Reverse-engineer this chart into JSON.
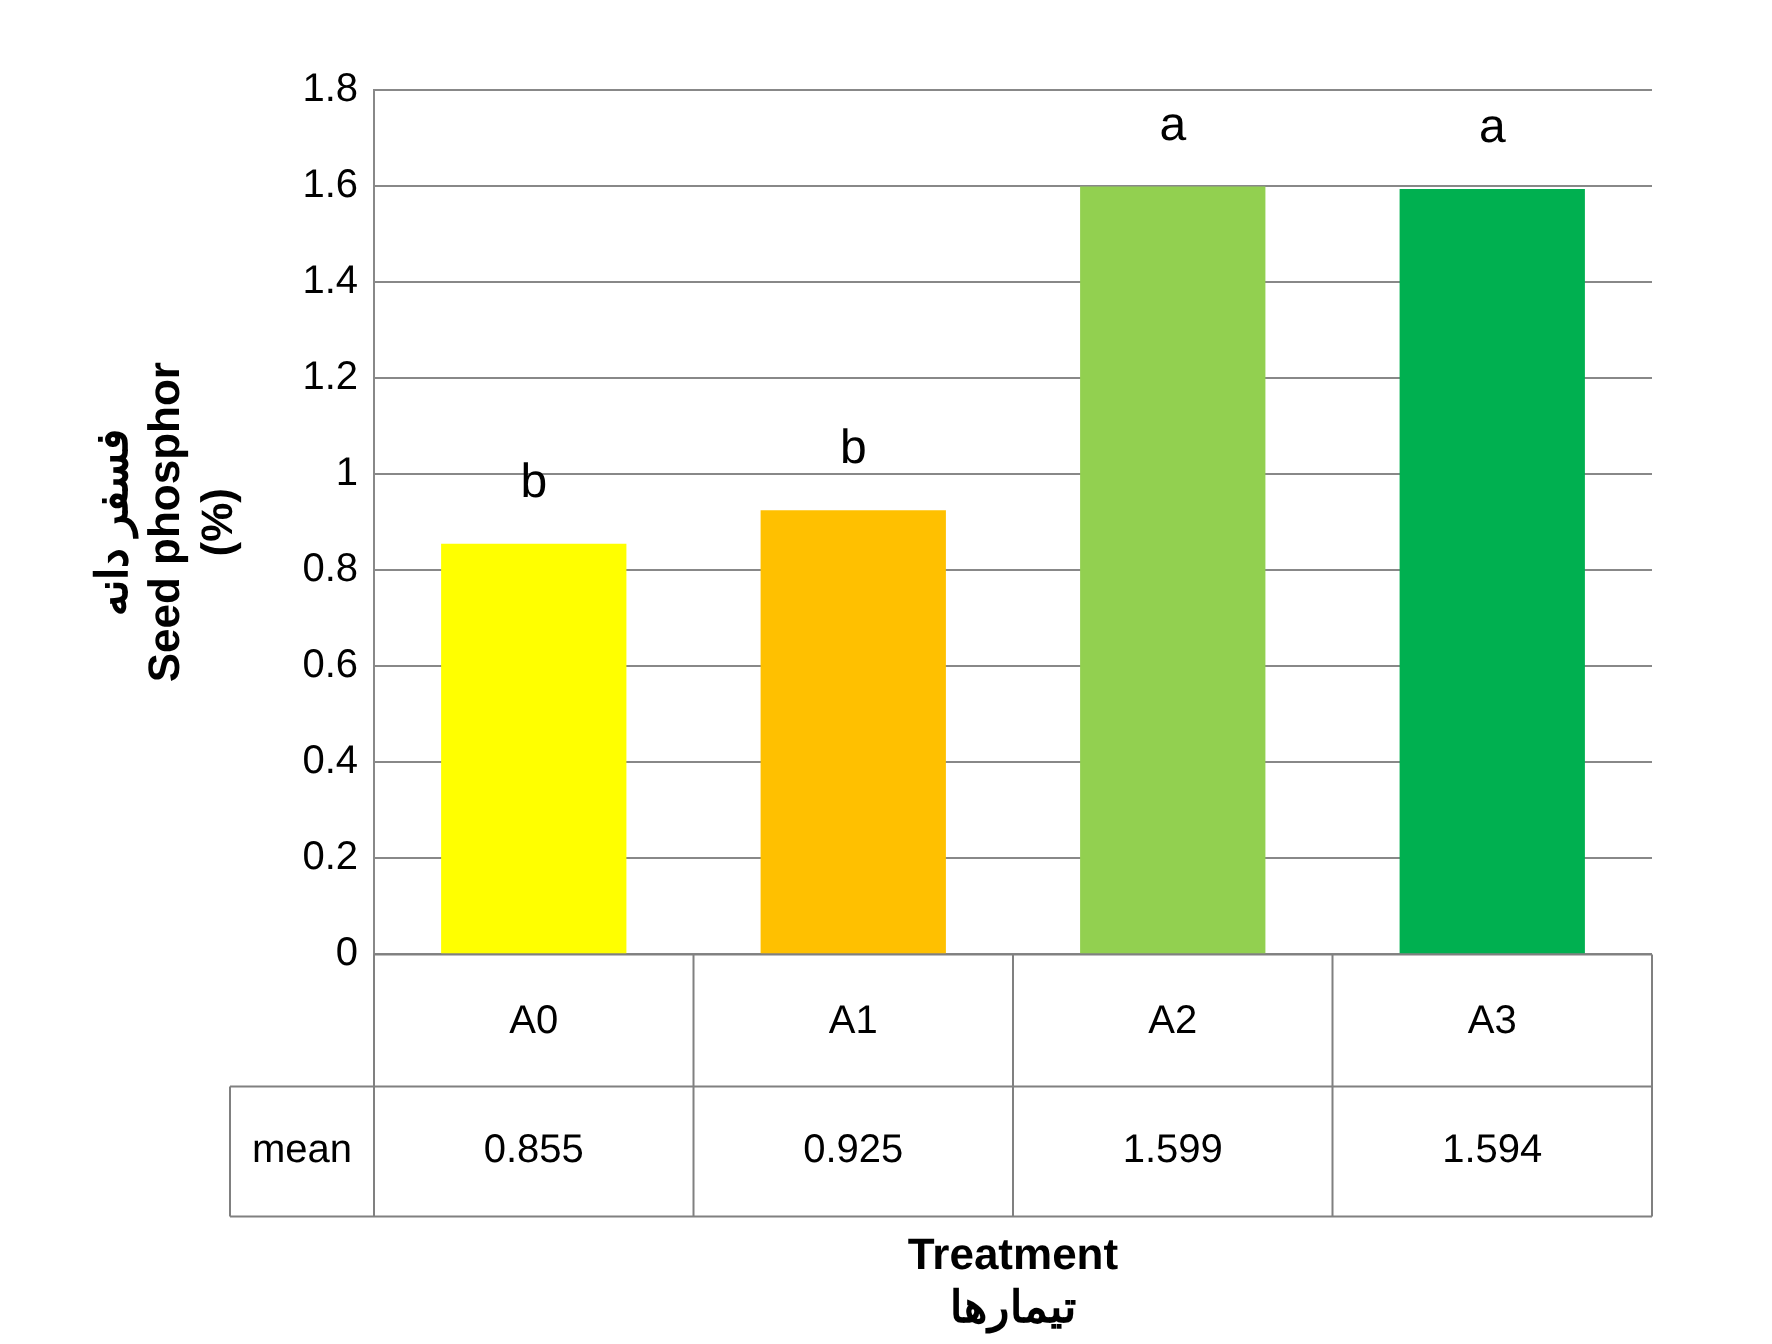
{
  "chart_data": {
    "type": "bar",
    "xlabel": "Treatment\nتیمارها",
    "ylabel": "فسفر دانه\nSeed phosphor\n(%)",
    "categories": [
      "A0",
      "A1",
      "A2",
      "A3"
    ],
    "series": [
      {
        "name": "mean",
        "colors": [
          "#ffff00",
          "#ffc000",
          "#92d050",
          "#00b050"
        ],
        "values": [
          0.855,
          0.925,
          1.599,
          1.594
        ],
        "value_labels": [
          "0.855",
          "0.925",
          "1.599",
          "1.594"
        ]
      }
    ],
    "ylim": [
      0,
      1.8
    ],
    "yticks": [
      0,
      0.2,
      0.4,
      0.6,
      0.8,
      1,
      1.2,
      1.4,
      1.6,
      1.8
    ],
    "grid": "y",
    "legend": false,
    "annotations": [
      {
        "text": "b",
        "x": "A0",
        "y": 0.855
      },
      {
        "text": "b",
        "x": "A1",
        "y": 0.925
      },
      {
        "text": "a",
        "x": "A2",
        "y": 1.599
      },
      {
        "text": "a",
        "x": "A3",
        "y": 1.594
      }
    ]
  }
}
